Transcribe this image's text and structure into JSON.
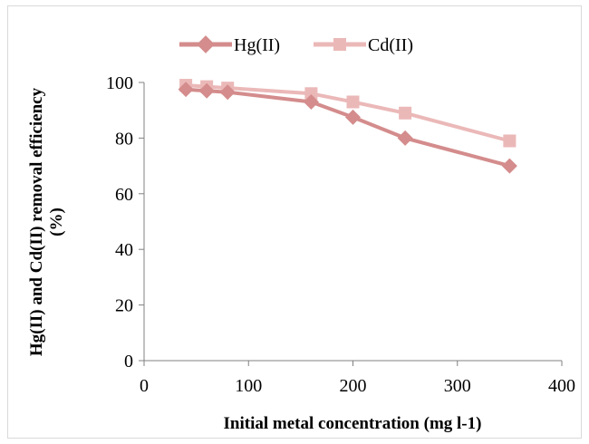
{
  "chart_data": {
    "type": "line",
    "title": "",
    "xlabel": "Initial metal concentration (mg l-1)",
    "ylabel_line1": "Hg(II) and Cd(II) removal efficiency",
    "ylabel_line2": "(%)",
    "xlim": [
      0,
      400
    ],
    "ylim": [
      0,
      100
    ],
    "xticks": [
      0,
      100,
      200,
      300,
      400
    ],
    "yticks": [
      0,
      20,
      40,
      60,
      80,
      100
    ],
    "grid": false,
    "legend_position": "top",
    "series": [
      {
        "name": "Hg(II)",
        "color": "#d48c8c",
        "marker": "diamond",
        "x": [
          40,
          60,
          80,
          160,
          200,
          250,
          350
        ],
        "y": [
          97.5,
          97,
          96.5,
          93,
          87.5,
          80,
          70
        ]
      },
      {
        "name": "Cd(II)",
        "color": "#ebb8b8",
        "marker": "square",
        "x": [
          40,
          60,
          80,
          160,
          200,
          250,
          350
        ],
        "y": [
          99,
          98.5,
          98,
          96,
          93,
          89,
          79
        ]
      }
    ]
  }
}
